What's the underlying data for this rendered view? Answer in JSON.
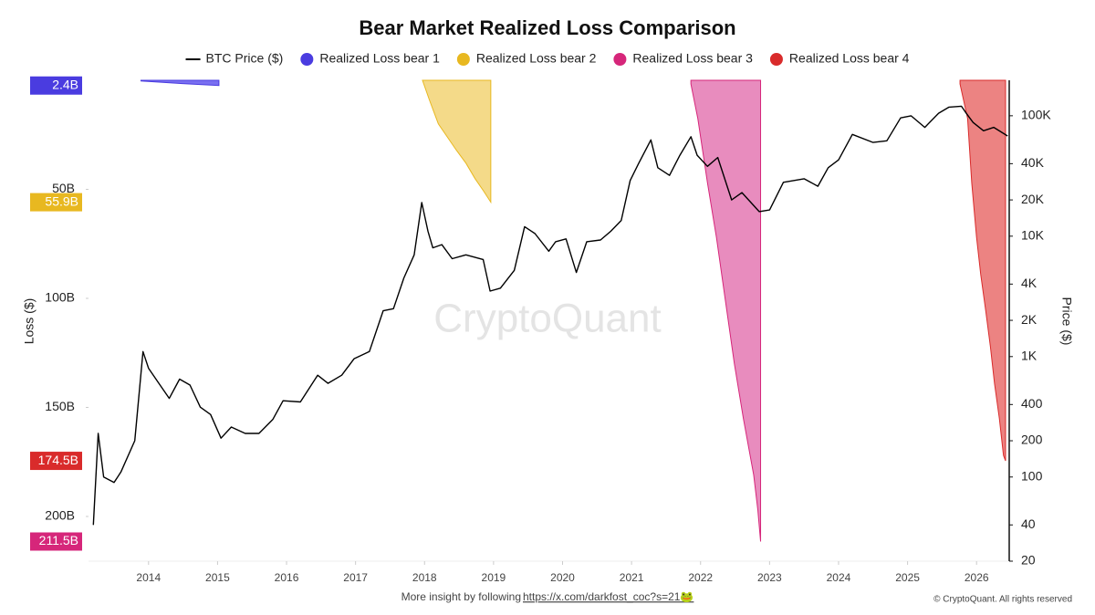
{
  "chart_data": {
    "type": "combo",
    "title": "Bear Market Realized Loss Comparison",
    "y_label": "Loss ($)",
    "y2_label": "Price ($)",
    "watermark": "CryptoQuant",
    "footnote": "More insight by following",
    "footnote_link": "https://x.com/darkfost_coc?s=21🐸",
    "copyright": "© CryptoQuant. All rights reserved",
    "xlim": [
      2013.13,
      2026.46
    ],
    "xticks": [
      2014,
      2015,
      2016,
      2017,
      2018,
      2019,
      2020,
      2021,
      2022,
      2023,
      2024,
      2025,
      2026
    ],
    "ylim": [
      0,
      220.5
    ],
    "y_inverted": true,
    "yticks": [
      {
        "value": 50,
        "label": "50B"
      },
      {
        "value": 100,
        "label": "100B"
      },
      {
        "value": 150,
        "label": "150B"
      },
      {
        "value": 200,
        "label": "200B"
      }
    ],
    "y2lim": [
      20,
      197000
    ],
    "y2_log": true,
    "y2ticks": [
      {
        "value": 100000,
        "label": "100K"
      },
      {
        "value": 40000,
        "label": "40K"
      },
      {
        "value": 20000,
        "label": "20K"
      },
      {
        "value": 10000,
        "label": "10K"
      },
      {
        "value": 4000,
        "label": "4K"
      },
      {
        "value": 2000,
        "label": "2K"
      },
      {
        "value": 1000,
        "label": "1K"
      },
      400,
      200,
      100,
      40,
      20
    ],
    "legend": "top",
    "series": [
      {
        "name": "BTC Price ($)",
        "type": "line",
        "axis": "y2",
        "color": "#000000",
        "x": [
          2013.2,
          2013.27,
          2013.35,
          2013.5,
          2013.6,
          2013.8,
          2013.92,
          2014.0,
          2014.15,
          2014.3,
          2014.45,
          2014.6,
          2014.75,
          2014.9,
          2015.05,
          2015.2,
          2015.4,
          2015.6,
          2015.8,
          2015.95,
          2016.2,
          2016.45,
          2016.6,
          2016.8,
          2016.98,
          2017.2,
          2017.4,
          2017.55,
          2017.7,
          2017.85,
          2017.96,
          2018.05,
          2018.12,
          2018.25,
          2018.4,
          2018.6,
          2018.85,
          2018.95,
          2019.1,
          2019.3,
          2019.45,
          2019.6,
          2019.8,
          2019.9,
          2020.05,
          2020.2,
          2020.35,
          2020.55,
          2020.7,
          2020.85,
          2020.98,
          2021.1,
          2021.28,
          2021.38,
          2021.55,
          2021.7,
          2021.86,
          2021.95,
          2022.1,
          2022.25,
          2022.45,
          2022.6,
          2022.85,
          2023.0,
          2023.2,
          2023.5,
          2023.7,
          2023.85,
          2024.0,
          2024.2,
          2024.5,
          2024.7,
          2024.9,
          2025.05,
          2025.25,
          2025.45,
          2025.6,
          2025.78,
          2025.85,
          2025.95,
          2026.1,
          2026.25,
          2026.45
        ],
        "values": [
          40,
          230,
          100,
          90,
          110,
          200,
          1100,
          800,
          600,
          450,
          650,
          580,
          380,
          330,
          210,
          260,
          230,
          230,
          300,
          430,
          420,
          700,
          600,
          700,
          960,
          1100,
          2400,
          2500,
          4500,
          7000,
          19000,
          11000,
          8000,
          8500,
          6500,
          7000,
          6400,
          3500,
          3700,
          5200,
          12000,
          10500,
          7500,
          9000,
          9500,
          5000,
          9000,
          9300,
          11000,
          13500,
          29000,
          40000,
          63000,
          37000,
          32000,
          47000,
          67000,
          47000,
          38000,
          45000,
          20000,
          23000,
          16000,
          16500,
          28000,
          30000,
          26000,
          37000,
          43000,
          70000,
          60000,
          62000,
          96000,
          100000,
          80000,
          105000,
          118000,
          120000,
          105000,
          88000,
          75000,
          80000,
          68000
        ]
      },
      {
        "name": "Realized Loss bear 1",
        "type": "area",
        "axis": "y",
        "color": "#6a5ff0",
        "label_color": "#4a3ce0",
        "end_label": "2.4B",
        "x": [
          2013.89,
          2014.49,
          2015.02
        ],
        "values": [
          0.3,
          1.5,
          2.4
        ]
      },
      {
        "name": "Realized Loss bear 2",
        "type": "area",
        "axis": "y",
        "color": "#f3d67c",
        "label_color": "#e8b820",
        "end_label": "55.9B",
        "x": [
          2017.97,
          2018.07,
          2018.2,
          2018.33,
          2018.46,
          2018.6,
          2018.73,
          2018.86,
          2018.96
        ],
        "values": [
          0,
          9,
          20,
          26,
          32,
          38,
          45,
          51,
          55.9
        ]
      },
      {
        "name": "Realized Loss bear 3",
        "type": "area",
        "axis": "y",
        "color": "#e57fb7",
        "label_color": "#d6267a",
        "end_label": "211.5B",
        "x": [
          2021.86,
          2021.96,
          2022.1,
          2022.23,
          2022.36,
          2022.49,
          2022.62,
          2022.77,
          2022.83,
          2022.87
        ],
        "values": [
          1.7,
          17.5,
          47,
          72,
          101,
          130,
          155,
          181,
          197,
          211.5
        ]
      },
      {
        "name": "Realized Loss bear 4",
        "type": "area",
        "axis": "y",
        "color": "#ea7674",
        "label_color": "#d92b2b",
        "end_label": "174.5B",
        "x": [
          2025.76,
          2025.87,
          2025.93,
          2026.0,
          2026.06,
          2026.13,
          2026.2,
          2026.26,
          2026.33,
          2026.39,
          2026.42
        ],
        "values": [
          1.7,
          17.5,
          47,
          72,
          89,
          105,
          122,
          139,
          155,
          172,
          174.5
        ]
      }
    ]
  }
}
